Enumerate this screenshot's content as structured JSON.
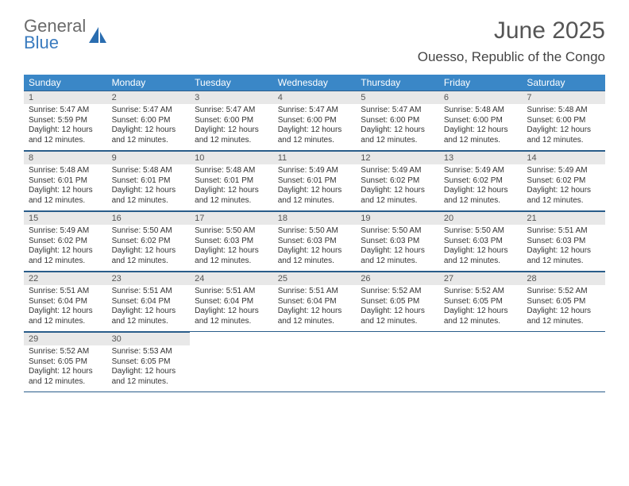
{
  "logo": {
    "line1": "General",
    "line2": "Blue"
  },
  "title": "June 2025",
  "location": "Ouesso, Republic of the Congo",
  "colors": {
    "header_bg": "#3a87c7",
    "header_text": "#ffffff",
    "daynum_bg": "#e8e8e8",
    "border": "#2a5d8a",
    "logo_gray": "#6a6a6a",
    "logo_blue": "#3a7bbf"
  },
  "weekdays": [
    "Sunday",
    "Monday",
    "Tuesday",
    "Wednesday",
    "Thursday",
    "Friday",
    "Saturday"
  ],
  "days": [
    {
      "n": "1",
      "sunrise": "5:47 AM",
      "sunset": "5:59 PM",
      "daylight": "12 hours and 12 minutes."
    },
    {
      "n": "2",
      "sunrise": "5:47 AM",
      "sunset": "6:00 PM",
      "daylight": "12 hours and 12 minutes."
    },
    {
      "n": "3",
      "sunrise": "5:47 AM",
      "sunset": "6:00 PM",
      "daylight": "12 hours and 12 minutes."
    },
    {
      "n": "4",
      "sunrise": "5:47 AM",
      "sunset": "6:00 PM",
      "daylight": "12 hours and 12 minutes."
    },
    {
      "n": "5",
      "sunrise": "5:47 AM",
      "sunset": "6:00 PM",
      "daylight": "12 hours and 12 minutes."
    },
    {
      "n": "6",
      "sunrise": "5:48 AM",
      "sunset": "6:00 PM",
      "daylight": "12 hours and 12 minutes."
    },
    {
      "n": "7",
      "sunrise": "5:48 AM",
      "sunset": "6:00 PM",
      "daylight": "12 hours and 12 minutes."
    },
    {
      "n": "8",
      "sunrise": "5:48 AM",
      "sunset": "6:01 PM",
      "daylight": "12 hours and 12 minutes."
    },
    {
      "n": "9",
      "sunrise": "5:48 AM",
      "sunset": "6:01 PM",
      "daylight": "12 hours and 12 minutes."
    },
    {
      "n": "10",
      "sunrise": "5:48 AM",
      "sunset": "6:01 PM",
      "daylight": "12 hours and 12 minutes."
    },
    {
      "n": "11",
      "sunrise": "5:49 AM",
      "sunset": "6:01 PM",
      "daylight": "12 hours and 12 minutes."
    },
    {
      "n": "12",
      "sunrise": "5:49 AM",
      "sunset": "6:02 PM",
      "daylight": "12 hours and 12 minutes."
    },
    {
      "n": "13",
      "sunrise": "5:49 AM",
      "sunset": "6:02 PM",
      "daylight": "12 hours and 12 minutes."
    },
    {
      "n": "14",
      "sunrise": "5:49 AM",
      "sunset": "6:02 PM",
      "daylight": "12 hours and 12 minutes."
    },
    {
      "n": "15",
      "sunrise": "5:49 AM",
      "sunset": "6:02 PM",
      "daylight": "12 hours and 12 minutes."
    },
    {
      "n": "16",
      "sunrise": "5:50 AM",
      "sunset": "6:02 PM",
      "daylight": "12 hours and 12 minutes."
    },
    {
      "n": "17",
      "sunrise": "5:50 AM",
      "sunset": "6:03 PM",
      "daylight": "12 hours and 12 minutes."
    },
    {
      "n": "18",
      "sunrise": "5:50 AM",
      "sunset": "6:03 PM",
      "daylight": "12 hours and 12 minutes."
    },
    {
      "n": "19",
      "sunrise": "5:50 AM",
      "sunset": "6:03 PM",
      "daylight": "12 hours and 12 minutes."
    },
    {
      "n": "20",
      "sunrise": "5:50 AM",
      "sunset": "6:03 PM",
      "daylight": "12 hours and 12 minutes."
    },
    {
      "n": "21",
      "sunrise": "5:51 AM",
      "sunset": "6:03 PM",
      "daylight": "12 hours and 12 minutes."
    },
    {
      "n": "22",
      "sunrise": "5:51 AM",
      "sunset": "6:04 PM",
      "daylight": "12 hours and 12 minutes."
    },
    {
      "n": "23",
      "sunrise": "5:51 AM",
      "sunset": "6:04 PM",
      "daylight": "12 hours and 12 minutes."
    },
    {
      "n": "24",
      "sunrise": "5:51 AM",
      "sunset": "6:04 PM",
      "daylight": "12 hours and 12 minutes."
    },
    {
      "n": "25",
      "sunrise": "5:51 AM",
      "sunset": "6:04 PM",
      "daylight": "12 hours and 12 minutes."
    },
    {
      "n": "26",
      "sunrise": "5:52 AM",
      "sunset": "6:05 PM",
      "daylight": "12 hours and 12 minutes."
    },
    {
      "n": "27",
      "sunrise": "5:52 AM",
      "sunset": "6:05 PM",
      "daylight": "12 hours and 12 minutes."
    },
    {
      "n": "28",
      "sunrise": "5:52 AM",
      "sunset": "6:05 PM",
      "daylight": "12 hours and 12 minutes."
    },
    {
      "n": "29",
      "sunrise": "5:52 AM",
      "sunset": "6:05 PM",
      "daylight": "12 hours and 12 minutes."
    },
    {
      "n": "30",
      "sunrise": "5:53 AM",
      "sunset": "6:05 PM",
      "daylight": "12 hours and 12 minutes."
    }
  ],
  "labels": {
    "sunrise": "Sunrise:",
    "sunset": "Sunset:",
    "daylight": "Daylight:"
  }
}
